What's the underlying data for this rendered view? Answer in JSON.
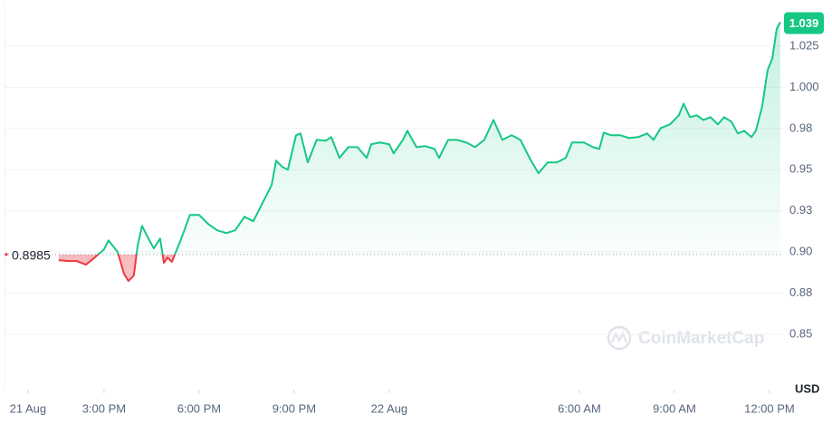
{
  "chart_data": {
    "type": "line",
    "y_unit": "USD",
    "watermark": "CoinMarketCap",
    "baseline": 0.8985,
    "current_price": 1.039,
    "up_color": "#16c784",
    "down_color": "#ea3943",
    "grid": true,
    "xlim": [
      11.86,
      36.43
    ],
    "ylim": [
      0.825,
      1.05
    ],
    "xticks": [
      {
        "value": 12.6,
        "label": "21 Aug"
      },
      {
        "value": 15,
        "label": "3:00 PM"
      },
      {
        "value": 18,
        "label": "6:00 PM"
      },
      {
        "value": 21,
        "label": "9:00 PM"
      },
      {
        "value": 24,
        "label": "22 Aug"
      },
      {
        "value": 30,
        "label": "6:00 AM"
      },
      {
        "value": 33,
        "label": "9:00 AM"
      },
      {
        "value": 36,
        "label": "12:00 PM"
      }
    ],
    "yticks": [
      0.85,
      {
        "value": 0.875,
        "label": "0.88"
      },
      {
        "value": 0.9,
        "label": "0.90"
      },
      {
        "value": 0.925,
        "label": "0.93"
      },
      0.95,
      {
        "value": 0.975,
        "label": "0.98"
      },
      {
        "value": 1,
        "label": "1.000"
      },
      1.025
    ],
    "x": [
      13.57,
      13.86,
      14.14,
      14.43,
      14.71,
      15.0,
      15.14,
      15.43,
      15.63,
      15.77,
      15.94,
      16.06,
      16.2,
      16.37,
      16.57,
      16.77,
      16.89,
      17.0,
      17.14,
      17.43,
      17.71,
      18.0,
      18.29,
      18.57,
      18.86,
      19.14,
      19.43,
      19.71,
      20.0,
      20.29,
      20.43,
      20.63,
      20.8,
      21.06,
      21.2,
      21.43,
      21.71,
      22.0,
      22.17,
      22.43,
      22.71,
      23.0,
      23.29,
      23.43,
      23.71,
      24.0,
      24.14,
      24.43,
      24.57,
      24.86,
      25.14,
      25.43,
      25.57,
      25.86,
      26.14,
      26.43,
      26.71,
      27.0,
      27.29,
      27.57,
      27.86,
      28.14,
      28.43,
      28.71,
      29.0,
      29.29,
      29.57,
      29.77,
      30.14,
      30.43,
      30.63,
      30.77,
      31.0,
      31.29,
      31.57,
      31.86,
      32.14,
      32.34,
      32.57,
      32.86,
      33.14,
      33.29,
      33.49,
      33.71,
      33.91,
      34.14,
      34.37,
      34.57,
      34.8,
      35.0,
      35.2,
      35.43,
      35.57,
      35.77,
      35.94,
      36.09,
      36.23,
      36.34
    ],
    "values": [
      0.8951,
      0.8945,
      0.8945,
      0.8923,
      0.8967,
      0.9016,
      0.9071,
      0.9,
      0.8868,
      0.8824,
      0.8857,
      0.9038,
      0.9159,
      0.9093,
      0.9022,
      0.9082,
      0.8934,
      0.8967,
      0.894,
      0.9077,
      0.9225,
      0.9225,
      0.917,
      0.9132,
      0.9115,
      0.9132,
      0.9214,
      0.9187,
      0.9297,
      0.9407,
      0.9555,
      0.9516,
      0.95,
      0.9709,
      0.972,
      0.9544,
      0.9681,
      0.9676,
      0.9698,
      0.9571,
      0.9637,
      0.9637,
      0.9571,
      0.9654,
      0.9665,
      0.9654,
      0.9599,
      0.9681,
      0.9736,
      0.9637,
      0.9643,
      0.9626,
      0.9571,
      0.9681,
      0.9681,
      0.9665,
      0.9637,
      0.9681,
      0.9802,
      0.9681,
      0.9709,
      0.9681,
      0.9571,
      0.9478,
      0.9544,
      0.9544,
      0.9571,
      0.9665,
      0.9665,
      0.9637,
      0.9626,
      0.9725,
      0.9709,
      0.9709,
      0.9692,
      0.9698,
      0.972,
      0.9681,
      0.9753,
      0.9775,
      0.983,
      0.9901,
      0.9819,
      0.983,
      0.9802,
      0.9819,
      0.9775,
      0.9819,
      0.9791,
      0.972,
      0.9736,
      0.9698,
      0.9736,
      0.9885,
      1.0104,
      1.0176,
      1.0357,
      1.0396
    ]
  }
}
